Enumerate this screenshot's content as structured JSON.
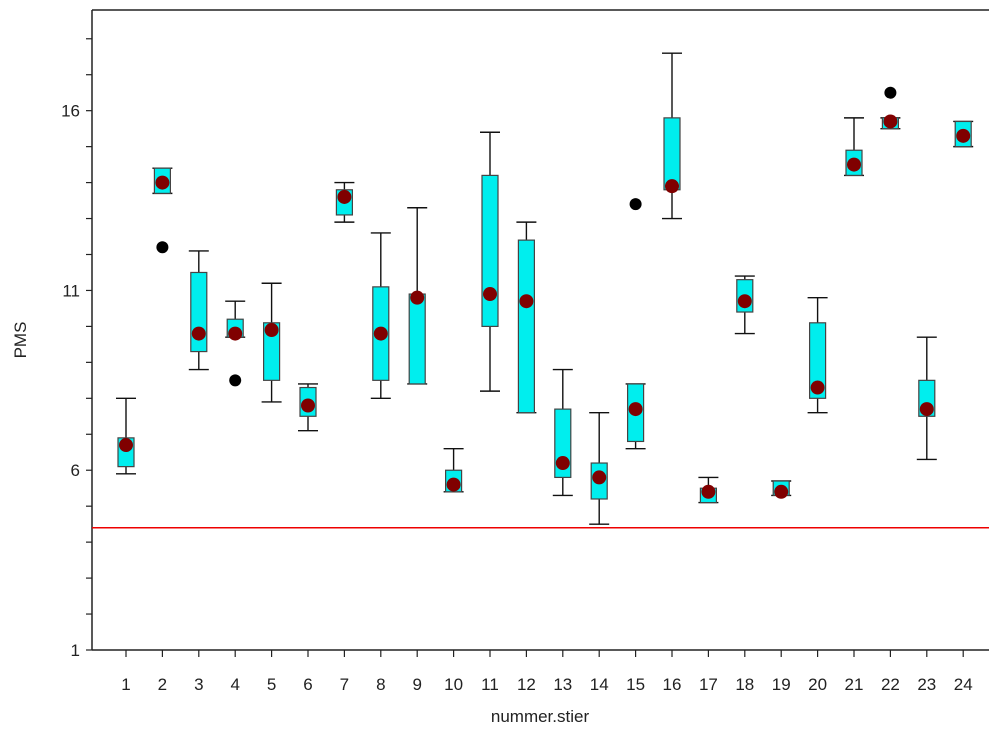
{
  "chart_data": {
    "type": "boxplot",
    "xlabel": "nummer.stier",
    "ylabel": "PMS",
    "ylim": [
      1,
      18.8
    ],
    "yticks": [
      1,
      6,
      11,
      16
    ],
    "categories": [
      "1",
      "2",
      "3",
      "4",
      "5",
      "6",
      "7",
      "8",
      "9",
      "10",
      "11",
      "12",
      "13",
      "14",
      "15",
      "16",
      "17",
      "18",
      "19",
      "20",
      "21",
      "22",
      "23",
      "24"
    ],
    "boxes": [
      {
        "low": 5.9,
        "q1": 6.1,
        "q3": 6.9,
        "high": 8.0,
        "mean": 6.7,
        "outliers": []
      },
      {
        "low": 13.7,
        "q1": 13.7,
        "q3": 14.4,
        "high": 14.4,
        "mean": 14.0,
        "outliers": [
          12.2
        ]
      },
      {
        "low": 8.8,
        "q1": 9.3,
        "q3": 11.5,
        "high": 12.1,
        "mean": 9.8,
        "outliers": []
      },
      {
        "low": 9.7,
        "q1": 9.7,
        "q3": 10.2,
        "high": 10.7,
        "mean": 9.8,
        "outliers": [
          8.5
        ]
      },
      {
        "low": 7.9,
        "q1": 8.5,
        "q3": 10.1,
        "high": 11.2,
        "mean": 9.9,
        "outliers": []
      },
      {
        "low": 7.1,
        "q1": 7.5,
        "q3": 8.3,
        "high": 8.4,
        "mean": 7.8,
        "outliers": []
      },
      {
        "low": 12.9,
        "q1": 13.1,
        "q3": 13.8,
        "high": 14.0,
        "mean": 13.6,
        "outliers": []
      },
      {
        "low": 8.0,
        "q1": 8.5,
        "q3": 11.1,
        "high": 12.6,
        "mean": 9.8,
        "outliers": []
      },
      {
        "low": 8.4,
        "q1": 8.4,
        "q3": 10.9,
        "high": 13.3,
        "mean": 10.8,
        "outliers": []
      },
      {
        "low": 5.4,
        "q1": 5.4,
        "q3": 6.0,
        "high": 6.6,
        "mean": 5.6,
        "outliers": []
      },
      {
        "low": 8.2,
        "q1": 10.0,
        "q3": 14.2,
        "high": 15.4,
        "mean": 10.9,
        "outliers": []
      },
      {
        "low": 7.6,
        "q1": 7.6,
        "q3": 12.4,
        "high": 12.9,
        "mean": 10.7,
        "outliers": []
      },
      {
        "low": 5.3,
        "q1": 5.8,
        "q3": 7.7,
        "high": 8.8,
        "mean": 6.2,
        "outliers": []
      },
      {
        "low": 4.5,
        "q1": 5.2,
        "q3": 6.2,
        "high": 7.6,
        "mean": 5.8,
        "outliers": []
      },
      {
        "low": 6.6,
        "q1": 6.8,
        "q3": 8.4,
        "high": 8.4,
        "mean": 7.7,
        "outliers": [
          13.4
        ]
      },
      {
        "low": 13.0,
        "q1": 13.8,
        "q3": 15.8,
        "high": 17.6,
        "mean": 13.9,
        "outliers": []
      },
      {
        "low": 5.1,
        "q1": 5.1,
        "q3": 5.5,
        "high": 5.8,
        "mean": 5.4,
        "outliers": []
      },
      {
        "low": 9.8,
        "q1": 10.4,
        "q3": 11.3,
        "high": 11.4,
        "mean": 10.7,
        "outliers": []
      },
      {
        "low": 5.3,
        "q1": 5.3,
        "q3": 5.7,
        "high": 5.7,
        "mean": 5.4,
        "outliers": []
      },
      {
        "low": 7.6,
        "q1": 8.0,
        "q3": 10.1,
        "high": 10.8,
        "mean": 8.3,
        "outliers": []
      },
      {
        "low": 14.2,
        "q1": 14.2,
        "q3": 14.9,
        "high": 15.8,
        "mean": 14.5,
        "outliers": []
      },
      {
        "low": 15.5,
        "q1": 15.5,
        "q3": 15.8,
        "high": 15.8,
        "mean": 15.7,
        "outliers": [
          16.5
        ]
      },
      {
        "low": 6.3,
        "q1": 7.5,
        "q3": 8.5,
        "high": 9.7,
        "mean": 7.7,
        "outliers": []
      },
      {
        "low": 15.0,
        "q1": 15.0,
        "q3": 15.7,
        "high": 15.7,
        "mean": 15.3,
        "outliers": []
      }
    ],
    "reference_line": 4.4,
    "colors": {
      "box_fill": "#00eeee",
      "box_stroke": "#444444",
      "whisker": "#111111",
      "mean_marker": "#800000",
      "outlier": "#000000",
      "reference_line": "#ee0000",
      "axis": "#222222"
    }
  }
}
